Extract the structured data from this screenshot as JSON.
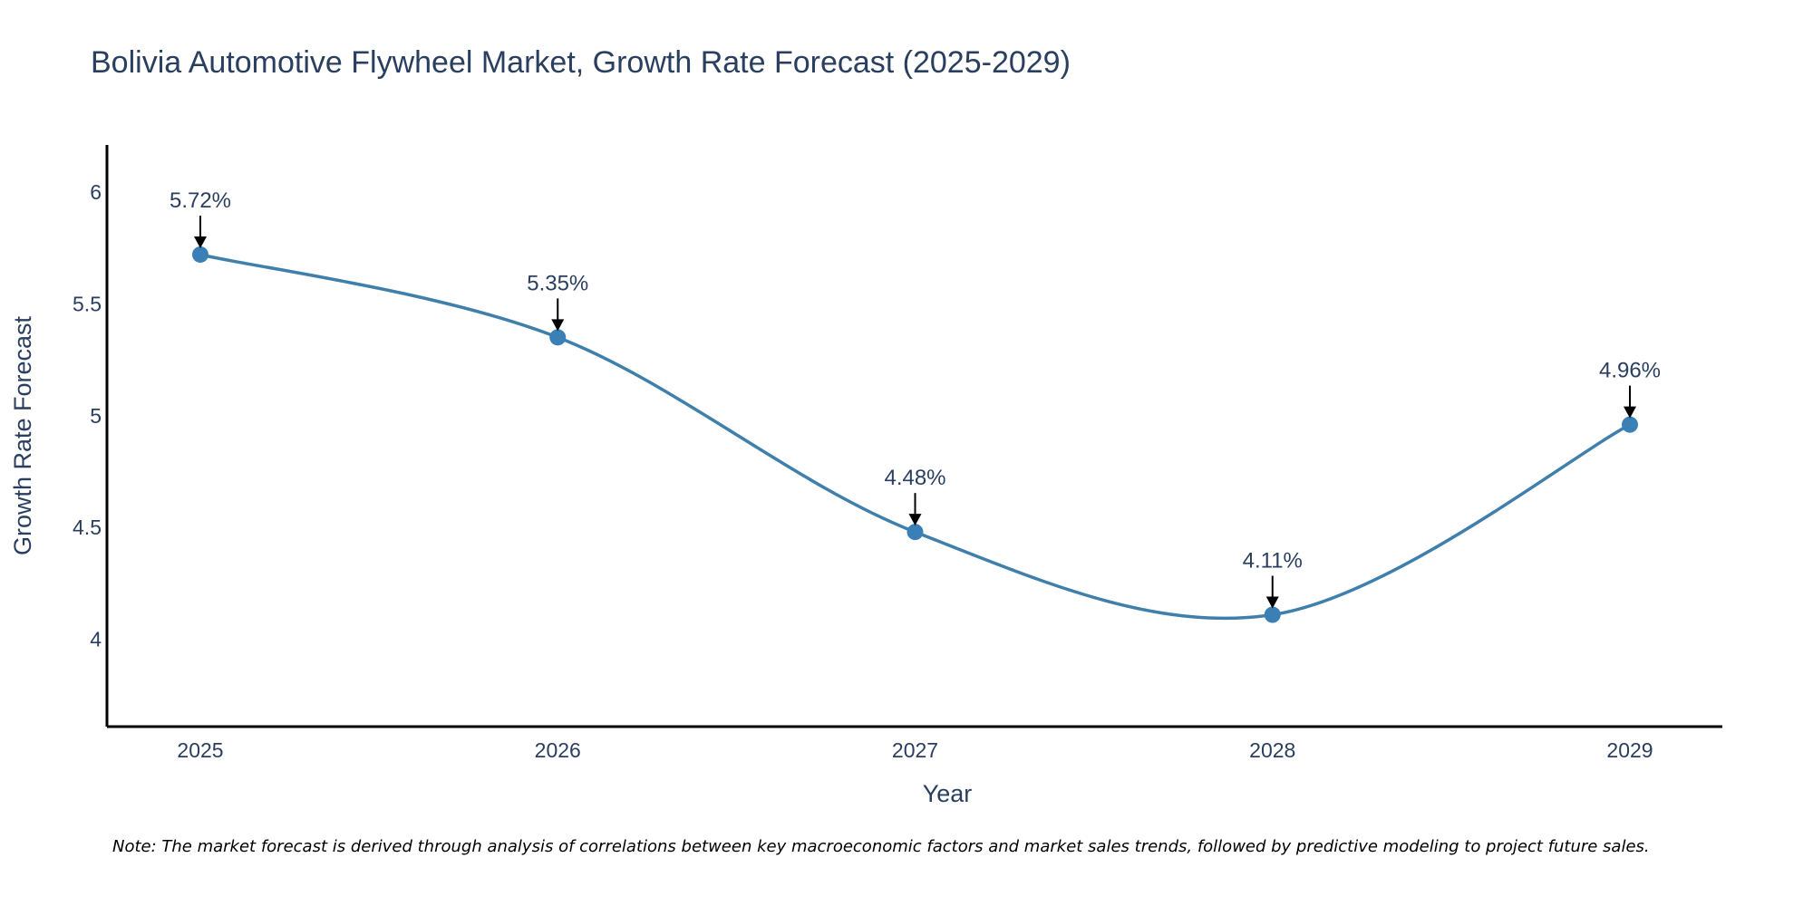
{
  "chart_data": {
    "type": "line",
    "title": "Bolivia Automotive Flywheel Market, Growth Rate Forecast (2025-2029)",
    "xlabel": "Year",
    "ylabel": "Growth Rate Forecast",
    "categories": [
      "2025",
      "2026",
      "2027",
      "2028",
      "2029"
    ],
    "values": [
      5.72,
      5.35,
      4.48,
      4.11,
      4.96
    ],
    "data_labels": [
      "5.72%",
      "5.35%",
      "4.48%",
      "4.11%",
      "4.96%"
    ],
    "ylim": [
      3.61,
      6.21
    ],
    "yticks": [
      4,
      4.5,
      5,
      5.5,
      6
    ],
    "ytick_labels": [
      "4",
      "4.5",
      "5",
      "5.5",
      "6"
    ],
    "line_shape": "spline",
    "grid": false,
    "colors": {
      "line": "#3f7fab",
      "marker": "#3a7fb5",
      "axis": "#000000",
      "text": "#2a3f5f",
      "arrow": "#000000"
    },
    "note": "Note: The market forecast is derived through analysis of correlations between key macroeconomic factors and market sales trends, followed by predictive modeling to project future sales."
  }
}
